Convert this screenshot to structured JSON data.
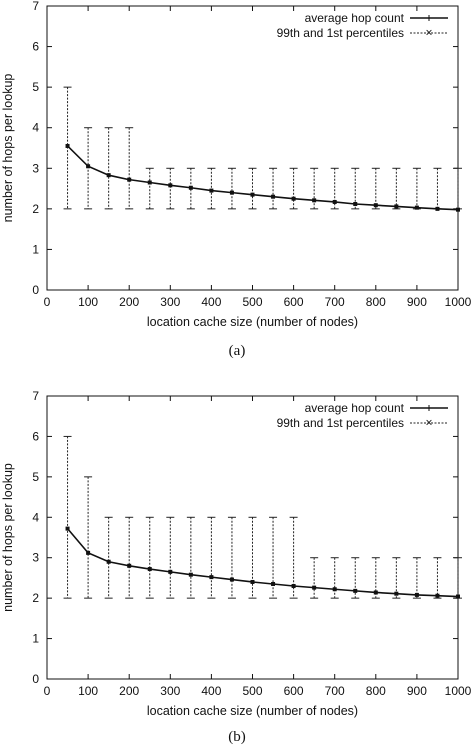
{
  "chart_data": [
    {
      "type": "line",
      "caption": "(a)",
      "xlabel": "location cache size (number of nodes)",
      "ylabel": "number of hops per lookup",
      "xlim": [
        0,
        1000
      ],
      "ylim": [
        0,
        7
      ],
      "xticks": [
        0,
        100,
        200,
        300,
        400,
        500,
        600,
        700,
        800,
        900,
        1000
      ],
      "yticks": [
        0,
        1,
        2,
        3,
        4,
        5,
        6,
        7
      ],
      "legend_position": "top-right",
      "x": [
        50,
        100,
        150,
        200,
        250,
        300,
        350,
        400,
        450,
        500,
        550,
        600,
        650,
        700,
        750,
        800,
        850,
        900,
        950,
        1000
      ],
      "series": [
        {
          "name": "average hop count",
          "values": [
            3.55,
            3.05,
            2.83,
            2.72,
            2.65,
            2.58,
            2.52,
            2.45,
            2.4,
            2.35,
            2.3,
            2.25,
            2.21,
            2.17,
            2.12,
            2.09,
            2.06,
            2.03,
            2.0,
            1.98
          ]
        },
        {
          "name": "99th and 1st percentiles",
          "low": [
            2,
            2,
            2,
            2,
            2,
            2,
            2,
            2,
            2,
            2,
            2,
            2,
            2,
            2,
            2,
            2,
            2,
            2,
            2,
            2
          ],
          "high": [
            5,
            4,
            4,
            4,
            3,
            3,
            3,
            3,
            3,
            3,
            3,
            3,
            3,
            3,
            3,
            3,
            3,
            3,
            3,
            3
          ]
        }
      ]
    },
    {
      "type": "line",
      "caption": "(b)",
      "xlabel": "location cache size (number of nodes)",
      "ylabel": "number of hops per lookup",
      "xlim": [
        0,
        1000
      ],
      "ylim": [
        0,
        7
      ],
      "xticks": [
        0,
        100,
        200,
        300,
        400,
        500,
        600,
        700,
        800,
        900,
        1000
      ],
      "yticks": [
        0,
        1,
        2,
        3,
        4,
        5,
        6,
        7
      ],
      "legend_position": "top-right",
      "x": [
        50,
        100,
        150,
        200,
        250,
        300,
        350,
        400,
        450,
        500,
        550,
        600,
        650,
        700,
        750,
        800,
        850,
        900,
        950,
        1000
      ],
      "series": [
        {
          "name": "average hop count",
          "values": [
            3.72,
            3.12,
            2.9,
            2.8,
            2.72,
            2.65,
            2.58,
            2.52,
            2.46,
            2.4,
            2.35,
            2.3,
            2.26,
            2.22,
            2.18,
            2.14,
            2.11,
            2.08,
            2.06,
            2.04
          ]
        },
        {
          "name": "99th and 1st percentiles",
          "low": [
            2,
            2,
            2,
            2,
            2,
            2,
            2,
            2,
            2,
            2,
            2,
            2,
            2,
            2,
            2,
            2,
            2,
            2,
            2,
            2
          ],
          "high": [
            6,
            5,
            4,
            4,
            4,
            4,
            4,
            4,
            4,
            4,
            4,
            4,
            3,
            3,
            3,
            3,
            3,
            3,
            3,
            3
          ]
        }
      ]
    }
  ]
}
